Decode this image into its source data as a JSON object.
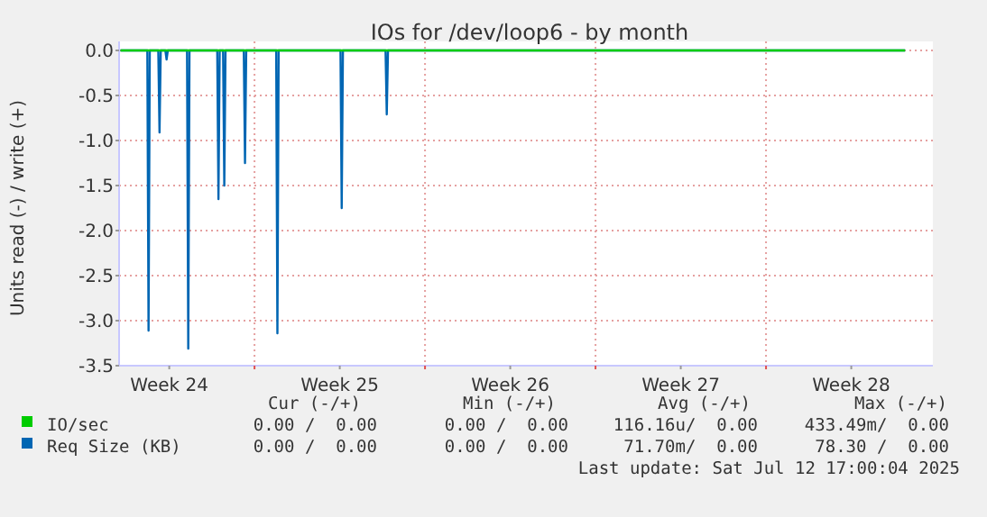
{
  "chart_data": {
    "type": "line",
    "title": "IOs for /dev/loop6 - by month",
    "ylabel": "Units read (-) / write (+)",
    "xlim": [
      "2025-06-10T10:34",
      "2025-07-13T20:24"
    ],
    "xticks": [
      {
        "value": "2025-06-12T12:00",
        "label": "Week 24"
      },
      {
        "value": "2025-06-16",
        "label": null
      },
      {
        "value": "2025-06-19T12:00",
        "label": "Week 25"
      },
      {
        "value": "2025-06-23",
        "label": null
      },
      {
        "value": "2025-06-26T12:00",
        "label": "Week 26"
      },
      {
        "value": "2025-06-30",
        "label": null
      },
      {
        "value": "2025-07-03T12:00",
        "label": "Week 27"
      },
      {
        "value": "2025-07-07",
        "label": null
      },
      {
        "value": "2025-07-10T12:00",
        "label": "Week 28"
      }
    ],
    "ylim": [
      -3.5,
      0.1
    ],
    "yticks": [
      {
        "value": 0,
        "label": "0.0"
      },
      {
        "value": -0.5,
        "label": "-0.5"
      },
      {
        "value": -1,
        "label": "-1.0"
      },
      {
        "value": -1.5,
        "label": "-1.5"
      },
      {
        "value": -2,
        "label": "-2.0"
      },
      {
        "value": -2.5,
        "label": "-2.5"
      },
      {
        "value": -3,
        "label": "-3.0"
      },
      {
        "value": -3.5,
        "label": "-3.5"
      }
    ],
    "grid": true,
    "legend": "bottom",
    "marker": "none",
    "line_style": "solid",
    "series": [
      {
        "name": "Req Size (KB)",
        "color": "#0066b3",
        "x": [
          "2025-06-10T12:00",
          "2025-06-11T14:24",
          "2025-06-11T15:36",
          "2025-06-11T16:48",
          "2025-06-12T01:12",
          "2025-06-12T02:24",
          "2025-06-12T03:36",
          "2025-06-12T08:10",
          "2025-06-12T09:22",
          "2025-06-12T10:34",
          "2025-06-13T05:31",
          "2025-06-13T06:43",
          "2025-06-13T07:55",
          "2025-06-14T11:17",
          "2025-06-14T12:29",
          "2025-06-14T13:41",
          "2025-06-14T17:02",
          "2025-06-14T18:14",
          "2025-06-14T19:26",
          "2025-06-15T13:26",
          "2025-06-15T14:38",
          "2025-06-15T15:50",
          "2025-06-16T21:22",
          "2025-06-16T22:34",
          "2025-06-16T23:46",
          "2025-06-19T12:43",
          "2025-06-19T13:55",
          "2025-06-19T15:07",
          "2025-06-21T09:07",
          "2025-06-21T10:19",
          "2025-06-21T11:31",
          "2025-07-12T17:00"
        ],
        "values": [
          0,
          0,
          -3.11,
          0,
          0,
          -0.91,
          0,
          0,
          -0.1,
          0,
          0,
          -3.31,
          0,
          0,
          -1.65,
          0,
          0,
          -1.5,
          0,
          0,
          -1.25,
          0,
          0,
          -3.14,
          0,
          0,
          -1.75,
          0,
          0,
          -0.71,
          0,
          0
        ]
      },
      {
        "name": "IO/sec",
        "color": "#00cc00",
        "x": [
          "2025-06-10T12:00",
          "2025-07-12T17:00"
        ],
        "values": [
          0,
          0
        ]
      }
    ],
    "annotations": [
      "Cur (-/+)",
      "Min (-/+)",
      "Avg (-/+)",
      "Max (-/+)",
      "0.00 /  0.00",
      "0.00 /  0.00",
      "116.16u/  0.00",
      "433.49m/  0.00",
      "0.00 /  0.00",
      "0.00 /  0.00",
      "71.70m/  0.00",
      "78.30 /  0.00",
      "Last update: Sat Jul 12 17:00:04 2025"
    ]
  }
}
